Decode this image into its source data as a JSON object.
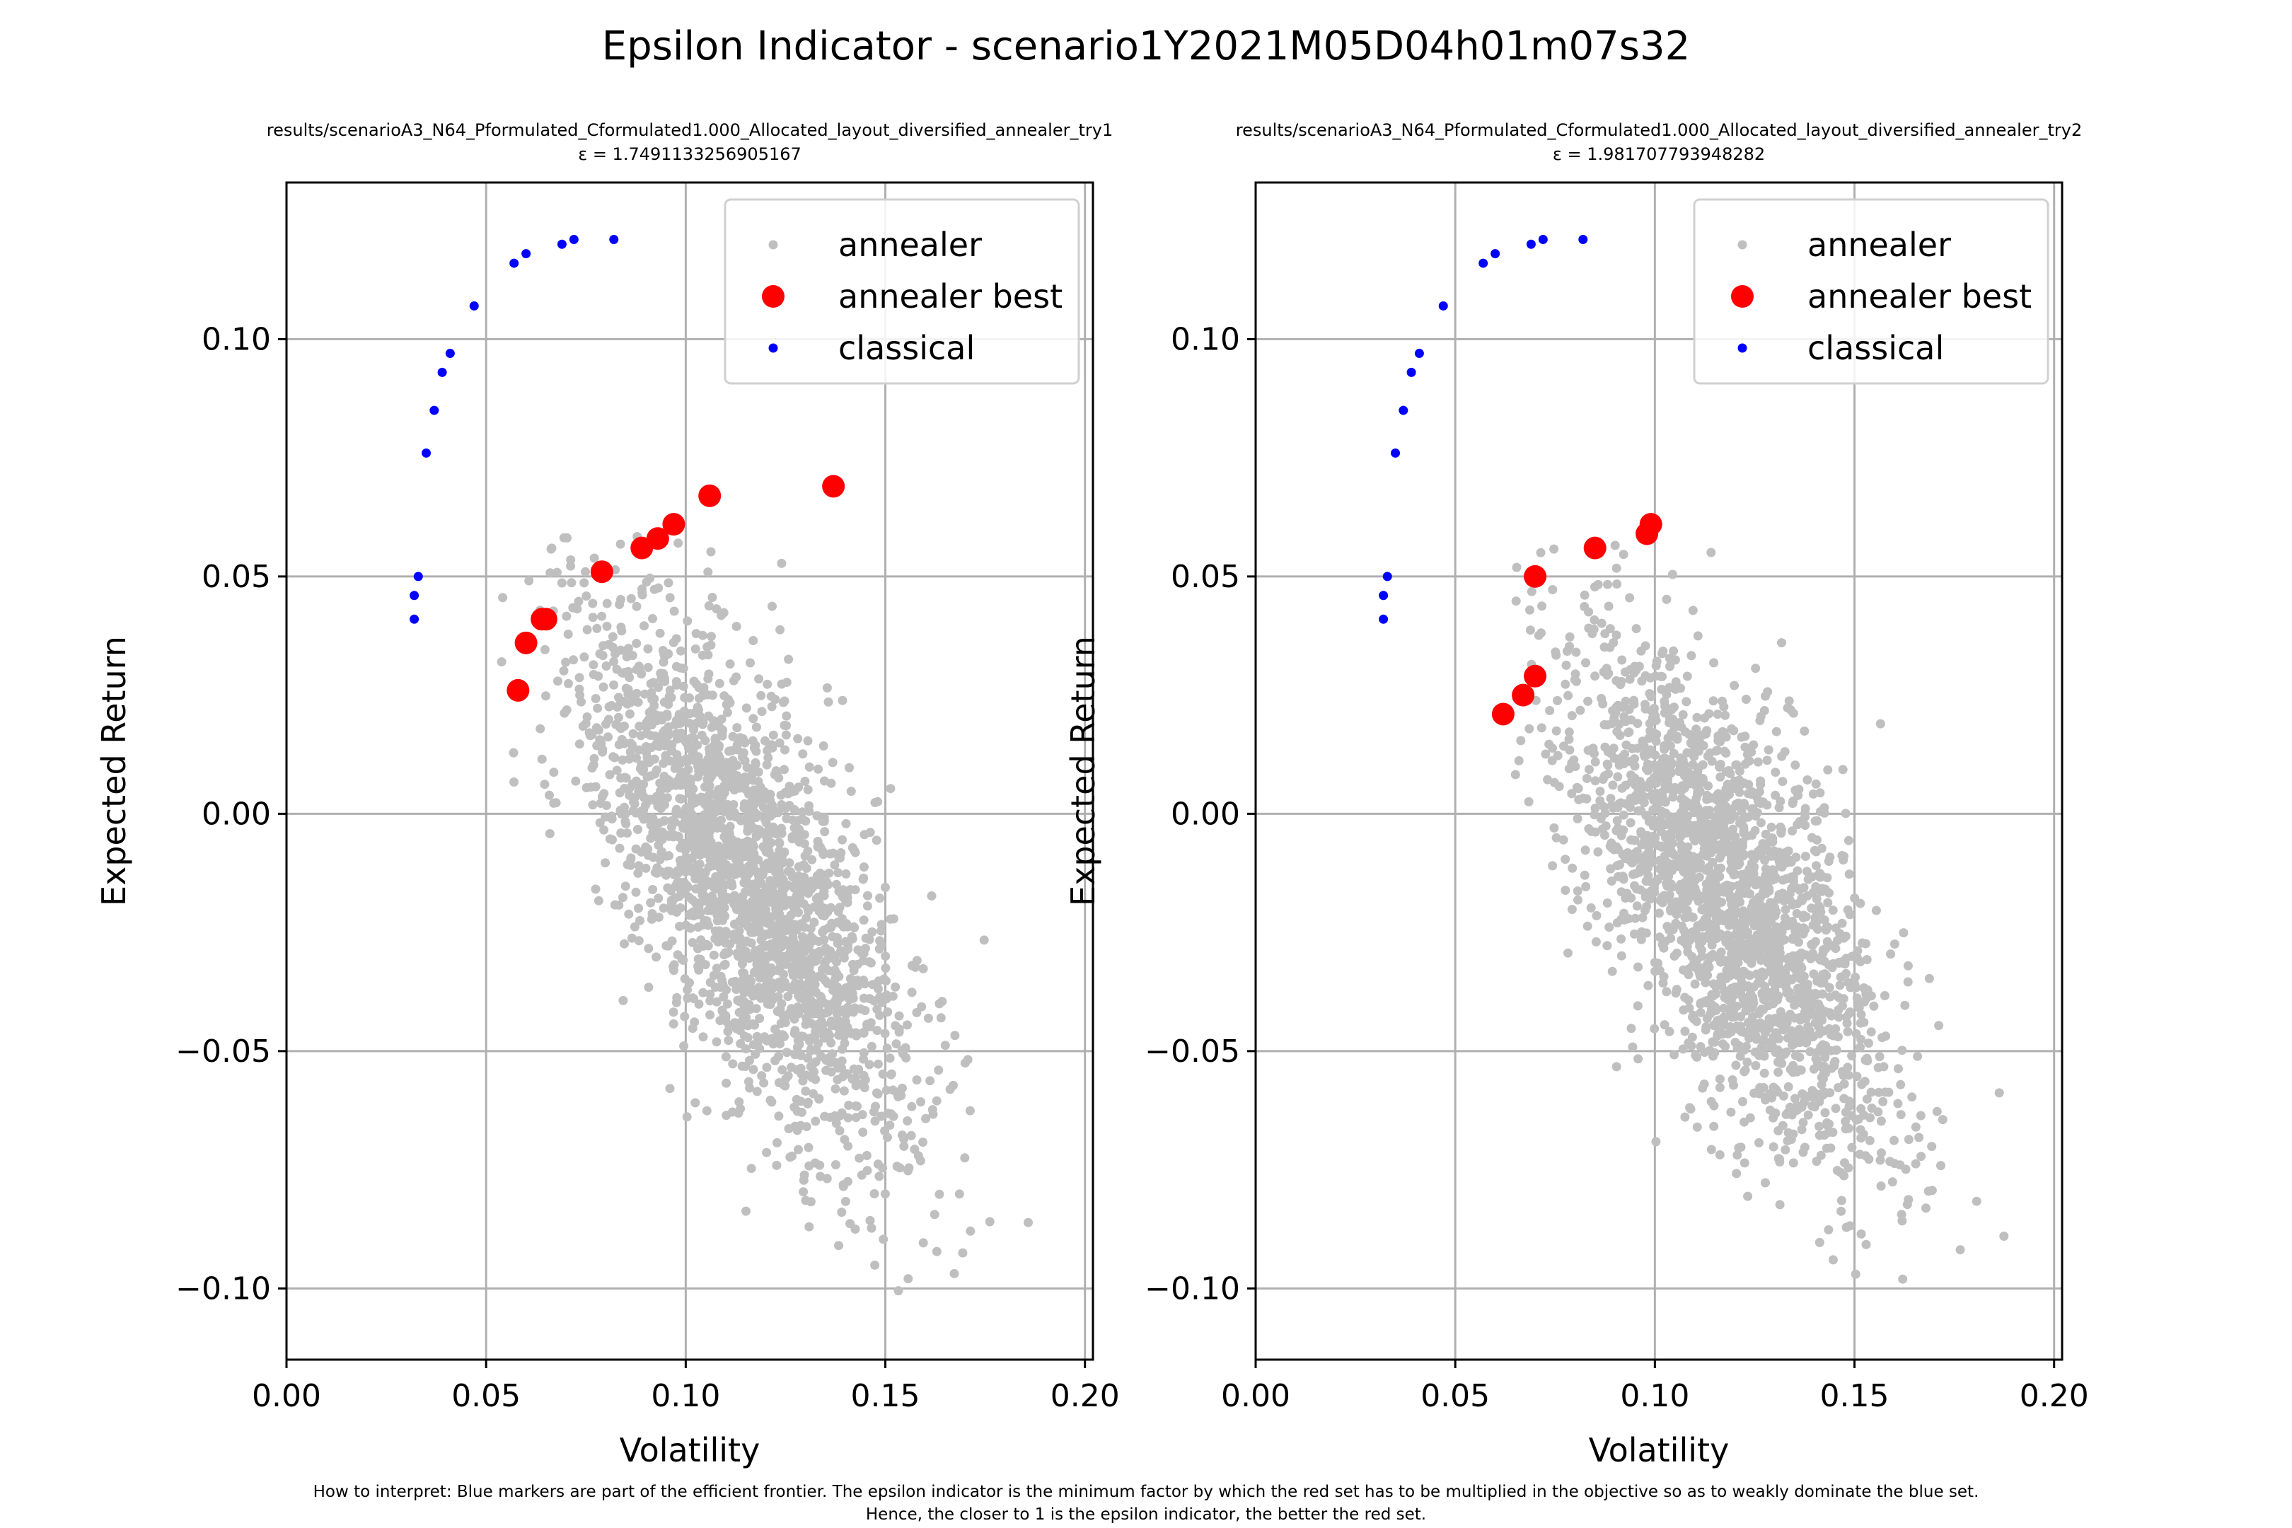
{
  "figure": {
    "suptitle": "Epsilon Indicator - scenario1Y2021M05D04h01m07s32",
    "footnote_line1": "How to interpret: Blue markers are part of the efficient frontier. The epsilon indicator is the minimum factor by which the red set has to be multiplied in the objective so as to weakly dominate the blue set.",
    "footnote_line2": "Hence, the closer to 1 is the epsilon indicator, the better the red set."
  },
  "colors": {
    "annealer": "#bfbfbf",
    "annealer_best": "#ff0000",
    "classical": "#0000ff",
    "grid": "#b0b0b0"
  },
  "chart_data": [
    {
      "type": "scatter",
      "title": "results/scenarioA3_N64_Pformulated_Cformulated1.000_Allocated_layout_diversified_annealer_try1",
      "subtitle": "ε = 1.7491133256905167",
      "xlabel": "Volatility",
      "ylabel": "Expected Return",
      "xlim": [
        0.0,
        0.202
      ],
      "ylim": [
        -0.115,
        0.133
      ],
      "xticks": [
        0.0,
        0.05,
        0.1,
        0.15,
        0.2
      ],
      "xtick_labels": [
        "0.00",
        "0.05",
        "0.10",
        "0.15",
        "0.20"
      ],
      "yticks": [
        -0.1,
        -0.05,
        0.0,
        0.05,
        0.1
      ],
      "ytick_labels": [
        "−0.10",
        "−0.05",
        "0.00",
        "0.05",
        "0.10"
      ],
      "grid": true,
      "legend_position": "top-right",
      "annealer_cloud": {
        "n": 2200,
        "x_range": [
          0.053,
          0.19
        ],
        "y_range": [
          -0.103,
          0.06
        ],
        "center": [
          0.115,
          -0.015
        ]
      },
      "series": [
        {
          "name": "annealer best",
          "marker": "large-dot",
          "points": [
            [
              0.058,
              0.026
            ],
            [
              0.06,
              0.036
            ],
            [
              0.064,
              0.041
            ],
            [
              0.065,
              0.041
            ],
            [
              0.079,
              0.051
            ],
            [
              0.089,
              0.056
            ],
            [
              0.093,
              0.058
            ],
            [
              0.097,
              0.061
            ],
            [
              0.106,
              0.067
            ],
            [
              0.137,
              0.069
            ]
          ]
        },
        {
          "name": "classical",
          "marker": "small-dot",
          "points": [
            [
              0.032,
              0.041
            ],
            [
              0.032,
              0.046
            ],
            [
              0.033,
              0.05
            ],
            [
              0.035,
              0.076
            ],
            [
              0.037,
              0.085
            ],
            [
              0.039,
              0.093
            ],
            [
              0.041,
              0.097
            ],
            [
              0.047,
              0.107
            ],
            [
              0.057,
              0.116
            ],
            [
              0.06,
              0.118
            ],
            [
              0.069,
              0.12
            ],
            [
              0.072,
              0.121
            ],
            [
              0.082,
              0.121
            ]
          ]
        }
      ]
    },
    {
      "type": "scatter",
      "title": "results/scenarioA3_N64_Pformulated_Cformulated1.000_Allocated_layout_diversified_annealer_try2",
      "subtitle": "ε = 1.981707793948282",
      "xlabel": "Volatility",
      "ylabel": "Expected Return",
      "xlim": [
        0.0,
        0.202
      ],
      "ylim": [
        -0.115,
        0.133
      ],
      "xticks": [
        0.0,
        0.05,
        0.1,
        0.15,
        0.2
      ],
      "xtick_labels": [
        "0.00",
        "0.05",
        "0.10",
        "0.15",
        "0.20"
      ],
      "yticks": [
        -0.1,
        -0.05,
        0.0,
        0.05,
        0.1
      ],
      "ytick_labels": [
        "−0.10",
        "−0.05",
        "0.00",
        "0.05",
        "0.10"
      ],
      "grid": true,
      "legend_position": "top-right",
      "annealer_cloud": {
        "n": 2200,
        "x_range": [
          0.065,
          0.194
        ],
        "y_range": [
          -0.1,
          0.058
        ],
        "center": [
          0.118,
          -0.018
        ]
      },
      "series": [
        {
          "name": "annealer best",
          "marker": "large-dot",
          "points": [
            [
              0.062,
              0.021
            ],
            [
              0.067,
              0.025
            ],
            [
              0.07,
              0.029
            ],
            [
              0.07,
              0.05
            ],
            [
              0.085,
              0.056
            ],
            [
              0.098,
              0.059
            ],
            [
              0.099,
              0.061
            ]
          ]
        },
        {
          "name": "classical",
          "marker": "small-dot",
          "points": [
            [
              0.032,
              0.041
            ],
            [
              0.032,
              0.046
            ],
            [
              0.033,
              0.05
            ],
            [
              0.035,
              0.076
            ],
            [
              0.037,
              0.085
            ],
            [
              0.039,
              0.093
            ],
            [
              0.041,
              0.097
            ],
            [
              0.047,
              0.107
            ],
            [
              0.057,
              0.116
            ],
            [
              0.06,
              0.118
            ],
            [
              0.069,
              0.12
            ],
            [
              0.072,
              0.121
            ],
            [
              0.082,
              0.121
            ]
          ]
        }
      ]
    }
  ]
}
